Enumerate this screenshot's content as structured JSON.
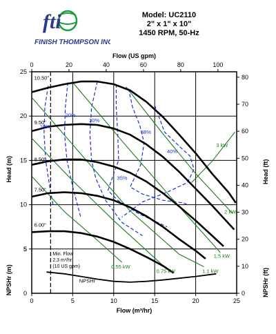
{
  "header": {
    "model": "Model: UC2110",
    "size": "2\" x 1\" x 10\"",
    "speed": "1450 RPM, 50-Hz"
  },
  "logo": {
    "mark": "fti",
    "company": "FINISH THOMPSON INC.",
    "icon": "globe-icon",
    "colors": {
      "blue": "#2a3b8f",
      "green": "#1e9b3c"
    }
  },
  "chart_data": {
    "type": "line",
    "title": "",
    "colors": {
      "head": "#000000",
      "efficiency": "#1a2fd4",
      "power": "#1a7a1a",
      "npsh": "#000000"
    },
    "axes": {
      "x_bottom": {
        "label": "Flow (m³/hr)",
        "range": [
          0,
          25
        ],
        "ticks": [
          0,
          5,
          10,
          15,
          20,
          25
        ]
      },
      "x_top": {
        "label": "Flow (US gpm)",
        "range": [
          0,
          110.07
        ],
        "ticks": [
          0,
          20,
          40,
          60,
          80,
          100
        ]
      },
      "y_left_head": {
        "label": "Head (m)",
        "range": [
          0,
          25
        ],
        "ticks": [
          5,
          10,
          15,
          20,
          25
        ]
      },
      "y_left_npshr": {
        "label": "NPSHr (m)",
        "range": [
          0,
          4
        ],
        "ticks": [
          0,
          5
        ]
      },
      "y_right_head": {
        "label": "Head (ft)",
        "range": [
          0,
          82.02
        ],
        "ticks": [
          20,
          30,
          40,
          50,
          60,
          70,
          80
        ]
      },
      "y_right_npshr": {
        "label": "NPSHr (ft)",
        "range": [
          0,
          13.12
        ],
        "ticks": [
          0,
          10
        ]
      }
    },
    "grid": {
      "vertical_x": [
        5,
        10,
        15,
        20
      ],
      "horizontal_y": [
        5,
        10,
        15,
        20
      ]
    },
    "series": [
      {
        "name": "10.50\"",
        "label_at": [
          0.3,
          24.1
        ],
        "points": [
          [
            0,
            22.7
          ],
          [
            2,
            23.2
          ],
          [
            4,
            23.6
          ],
          [
            6,
            23.9
          ],
          [
            8,
            23.9
          ],
          [
            10,
            23.6
          ],
          [
            12,
            22.9
          ],
          [
            14,
            21.6
          ],
          [
            16,
            19.9
          ],
          [
            18,
            17.9
          ],
          [
            20,
            15.8
          ],
          [
            22,
            13.5
          ],
          [
            24,
            11.4
          ],
          [
            24.9,
            10.2
          ]
        ]
      },
      {
        "name": "9.50\"",
        "label_at": [
          0.3,
          19.1
        ],
        "points": [
          [
            0,
            18.3
          ],
          [
            2,
            18.8
          ],
          [
            4,
            19.0
          ],
          [
            6,
            19.1
          ],
          [
            8,
            19.0
          ],
          [
            10,
            18.6
          ],
          [
            12,
            17.9
          ],
          [
            14,
            16.8
          ],
          [
            16,
            15.4
          ],
          [
            18,
            13.7
          ],
          [
            20,
            11.8
          ],
          [
            22,
            9.9
          ],
          [
            24,
            7.9
          ],
          [
            24.7,
            7.2
          ]
        ]
      },
      {
        "name": "8.50\"",
        "label_at": [
          0.3,
          14.9
        ],
        "points": [
          [
            0,
            14.5
          ],
          [
            2,
            14.9
          ],
          [
            4,
            15.1
          ],
          [
            6,
            15.1
          ],
          [
            8,
            14.8
          ],
          [
            10,
            14.3
          ],
          [
            12,
            13.6
          ],
          [
            14,
            12.6
          ],
          [
            16,
            11.3
          ],
          [
            18,
            9.8
          ],
          [
            20,
            8.2
          ],
          [
            22,
            6.5
          ],
          [
            23.4,
            5.3
          ]
        ]
      },
      {
        "name": "7.50\"",
        "label_at": [
          0.3,
          11.5
        ],
        "points": [
          [
            0,
            10.9
          ],
          [
            2,
            11.3
          ],
          [
            4,
            11.4
          ],
          [
            6,
            11.3
          ],
          [
            8,
            11.0
          ],
          [
            10,
            10.5
          ],
          [
            12,
            9.7
          ],
          [
            14,
            8.7
          ],
          [
            16,
            7.5
          ],
          [
            18,
            6.1
          ],
          [
            20,
            4.8
          ],
          [
            21.2,
            3.9
          ]
        ]
      },
      {
        "name": "6.00\"",
        "label_at": [
          0.3,
          7.5
        ],
        "points": [
          [
            0,
            6.9
          ],
          [
            2,
            7.0
          ],
          [
            4,
            7.0
          ],
          [
            6,
            6.8
          ],
          [
            8,
            6.4
          ],
          [
            10,
            5.8
          ],
          [
            12,
            5.0
          ],
          [
            14,
            4.1
          ],
          [
            16,
            3.1
          ],
          [
            17.3,
            2.3
          ]
        ]
      },
      {
        "name": "NPSHr",
        "label_at": [
          5.8,
          1.2
        ],
        "points": [
          [
            1.8,
            2.4
          ],
          [
            4,
            2.2
          ],
          [
            6,
            1.9
          ],
          [
            8,
            1.6
          ],
          [
            10,
            1.35
          ],
          [
            12,
            1.25
          ],
          [
            14,
            1.35
          ],
          [
            16,
            1.5
          ],
          [
            18,
            1.7
          ],
          [
            20,
            1.9
          ],
          [
            22.5,
            2.2
          ]
        ]
      }
    ],
    "efficiency_lines": [
      {
        "name": "10%",
        "label_at": [
          1.0,
          18.6
        ],
        "points": [
          [
            2.0,
            23.4
          ],
          [
            1.6,
            21
          ],
          [
            1.5,
            18
          ],
          [
            1.7,
            15
          ],
          [
            2.2,
            12
          ],
          [
            2.6,
            10
          ]
        ]
      },
      {
        "name": "20%",
        "label_at": [
          4.1,
          19.9
        ],
        "points": [
          [
            4.4,
            23.8
          ],
          [
            4.1,
            21
          ],
          [
            4.0,
            18
          ],
          [
            4.3,
            15
          ],
          [
            5.0,
            12
          ],
          [
            6.0,
            8.5
          ]
        ]
      },
      {
        "name": "30%",
        "label_at": [
          7.0,
          19.3
        ],
        "points": [
          [
            8.0,
            23.9
          ],
          [
            7.3,
            21
          ],
          [
            7.1,
            18
          ],
          [
            7.3,
            15
          ],
          [
            7.8,
            13
          ],
          [
            9.0,
            10.5
          ],
          [
            11.0,
            8.0
          ],
          [
            13.5,
            6.5
          ]
        ]
      },
      {
        "name": "35%",
        "label_at": [
          10.4,
          12.8
        ],
        "points": [
          [
            10.3,
            23.6
          ],
          [
            10.3,
            21
          ],
          [
            10.5,
            18
          ],
          [
            10.6,
            15
          ],
          [
            10.0,
            13.5
          ],
          [
            9.3,
            11.6
          ],
          [
            10.5,
            10.5
          ],
          [
            13,
            9.0
          ],
          [
            16.5,
            7.5
          ]
        ]
      },
      {
        "name": "38%",
        "label_at": [
          13.3,
          18.0
        ],
        "points": [
          [
            11.8,
            23.1
          ],
          [
            12.3,
            21
          ],
          [
            13.2,
            18.9
          ],
          [
            13.7,
            17.0
          ],
          [
            13.3,
            14.5
          ],
          [
            12.0,
            12.0
          ],
          [
            13.5,
            11.2
          ],
          [
            16.0,
            10.5
          ],
          [
            18.5,
            10.2
          ],
          [
            19.0,
            10.0
          ]
        ]
      },
      {
        "name": "40%",
        "label_at": [
          16.5,
          15.8
        ],
        "points": [
          [
            15.0,
            21.2
          ],
          [
            16.2,
            18.2
          ],
          [
            18.0,
            16.6
          ],
          [
            19.3,
            15.5
          ],
          [
            19.8,
            14.0
          ],
          [
            19.0,
            12.5
          ],
          [
            16.5,
            11.4
          ],
          [
            13.5,
            10.3
          ],
          [
            11.0,
            8.6
          ]
        ]
      }
    ],
    "power_lines": [
      {
        "name": "0.55 kW",
        "label_at": [
          9.7,
          2.8
        ],
        "points": [
          [
            0,
            13.2
          ],
          [
            4,
            9.2
          ],
          [
            8,
            6.0
          ],
          [
            11.0,
            3.5
          ]
        ]
      },
      {
        "name": "0.75 kW",
        "label_at": [
          15.2,
          2.3
        ],
        "points": [
          [
            0,
            17.5
          ],
          [
            5,
            12.7
          ],
          [
            10,
            8.2
          ],
          [
            16.3,
            2.9
          ]
        ]
      },
      {
        "name": "1.1 kW",
        "label_at": [
          20.8,
          2.3
        ],
        "points": [
          [
            0,
            22.1
          ],
          [
            6,
            15.7
          ],
          [
            12,
            9.3
          ],
          [
            18,
            4.4
          ],
          [
            21.0,
            3.0
          ]
        ]
      },
      {
        "name": "1.5 kW",
        "label_at": [
          22.2,
          4.0
        ],
        "points": [
          [
            5.0,
            23.8
          ],
          [
            11,
            17.2
          ],
          [
            17,
            10.8
          ],
          [
            23.0,
            4.6
          ]
        ]
      },
      {
        "name": "2 kW",
        "label_at": [
          23.5,
          9.0
        ],
        "points": [
          [
            11.5,
            23.3
          ],
          [
            16,
            18.0
          ],
          [
            20,
            13.5
          ],
          [
            24.5,
            9.0
          ]
        ]
      },
      {
        "name": "3 kW",
        "label_at": [
          22.5,
          16.5
        ],
        "points": [
          [
            19.5,
            12.5
          ],
          [
            22,
            14.9
          ],
          [
            24.8,
            18.2
          ]
        ]
      }
    ],
    "min_flow": {
      "x": 2.3,
      "text": [
        "Min. Flow",
        "2.3 m³/hr",
        "(10 US gpm)"
      ]
    }
  }
}
